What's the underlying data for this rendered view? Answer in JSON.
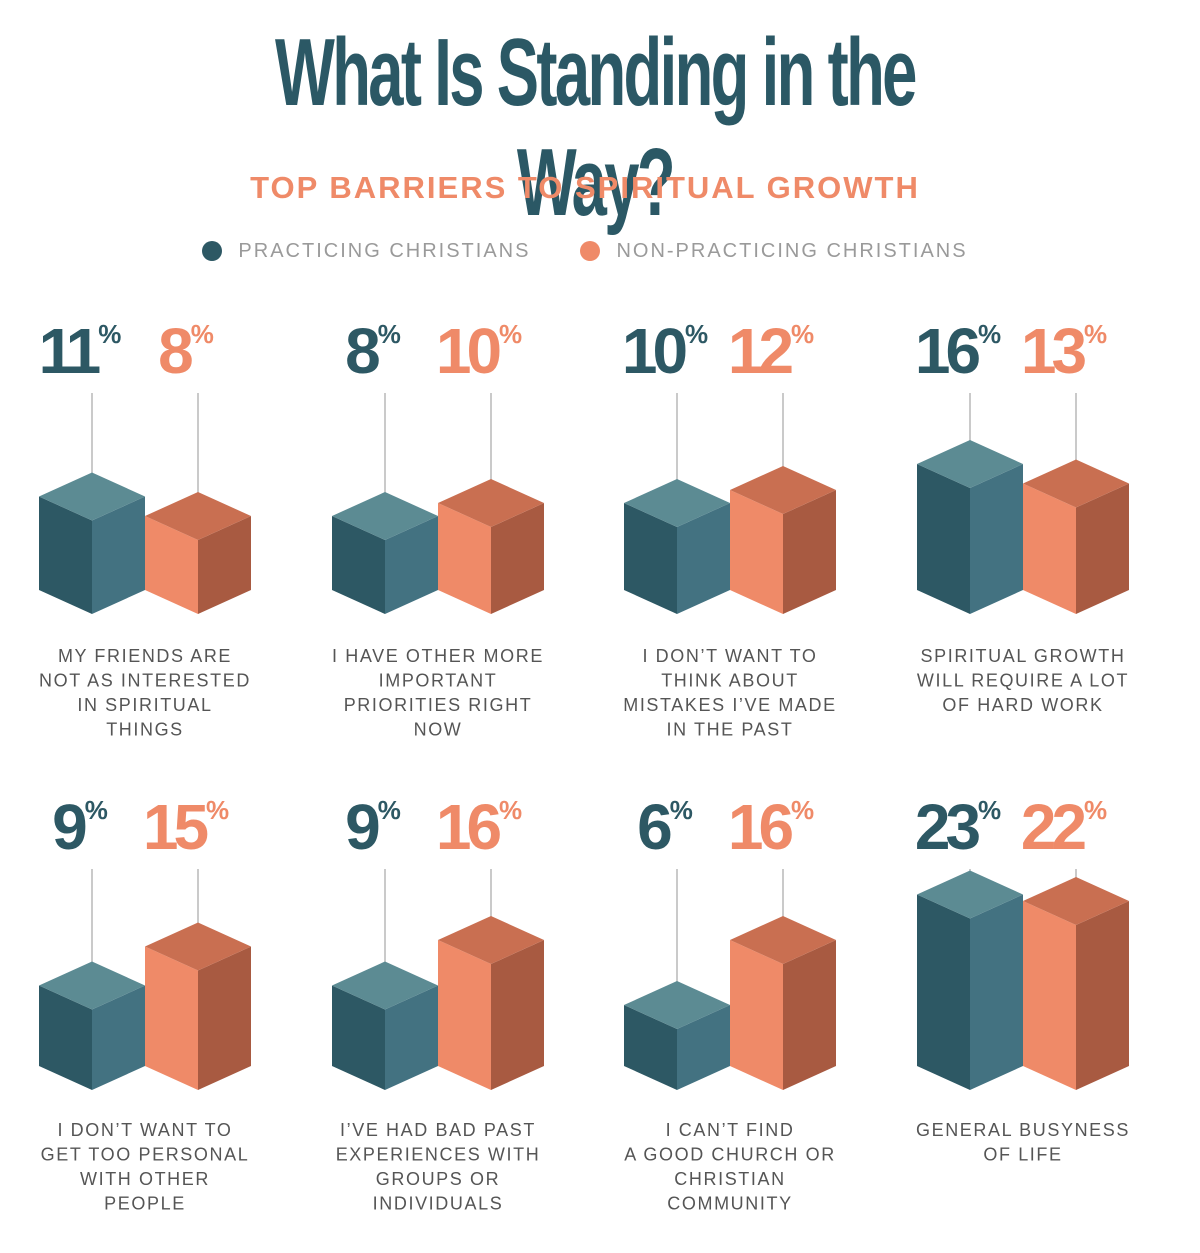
{
  "chart_data": {
    "type": "bar",
    "title": "What Is Standing in the Way?",
    "subtitle": "TOP BARRIERS TO SPIRITUAL GROWTH",
    "legend_position": "top",
    "colors": {
      "practicing": {
        "front": "#2d5864",
        "side": "#437281",
        "top": "#5c8b93"
      },
      "non_practicing": {
        "front": "#ef8a68",
        "side": "#a85a41",
        "top": "#c96f51"
      },
      "title": "#2b5865",
      "subtitle": "#ef8a68",
      "label": "#555555"
    },
    "series": [
      {
        "name": "PRACTICING CHRISTIANS",
        "values": [
          11,
          8,
          10,
          16,
          9,
          9,
          6,
          23
        ]
      },
      {
        "name": "NON-PRACTICING CHRISTIANS",
        "values": [
          8,
          10,
          12,
          13,
          15,
          16,
          16,
          22
        ]
      }
    ],
    "categories": [
      {
        "lines": [
          "MY FRIENDS ARE",
          "NOT AS INTERESTED",
          "IN SPIRITUAL",
          "THINGS"
        ]
      },
      {
        "lines": [
          "I HAVE OTHER MORE",
          "IMPORTANT",
          "PRIORITIES RIGHT",
          "NOW"
        ]
      },
      {
        "lines": [
          "I DON’T WANT TO",
          "THINK ABOUT",
          "MISTAKES I’VE MADE",
          "IN THE PAST"
        ]
      },
      {
        "lines": [
          "SPIRITUAL GROWTH",
          "WILL REQUIRE A LOT",
          "OF HARD WORK"
        ]
      },
      {
        "lines": [
          "I DON’T WANT TO",
          "GET TOO PERSONAL",
          "WITH OTHER",
          "PEOPLE"
        ]
      },
      {
        "lines": [
          "I’VE HAD BAD PAST",
          "EXPERIENCES WITH",
          "GROUPS OR",
          "INDIVIDUALS"
        ]
      },
      {
        "lines": [
          "I CAN’T FIND",
          "A GOOD CHURCH OR",
          "CHRISTIAN",
          "COMMUNITY"
        ]
      },
      {
        "lines": [
          "GENERAL BUSYNESS",
          "OF LIFE"
        ]
      }
    ],
    "value_suffix": "%"
  }
}
